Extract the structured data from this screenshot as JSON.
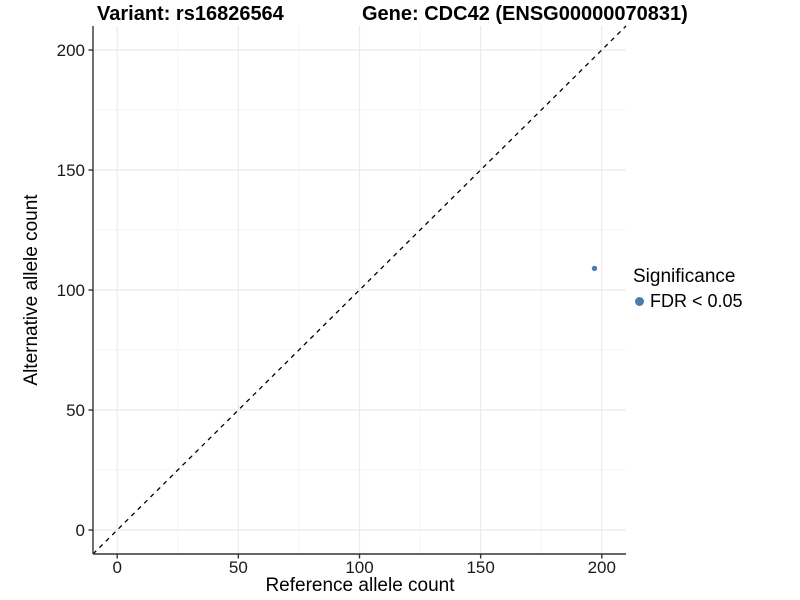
{
  "header": {
    "variant_title": "Variant: rs16826564",
    "gene_title": "Gene: CDC42 (ENSG00000070831)"
  },
  "chart_data": {
    "type": "scatter",
    "xlabel": "Reference allele count",
    "ylabel": "Alternative allele count",
    "xlim": [
      -10,
      210
    ],
    "ylim": [
      -10,
      210
    ],
    "x_ticks": [
      0,
      50,
      100,
      150,
      200
    ],
    "y_ticks": [
      0,
      50,
      100,
      150,
      200
    ],
    "x_minor_ticks": [
      25,
      75,
      125,
      175
    ],
    "y_minor_ticks": [
      25,
      75,
      125,
      175
    ],
    "grid": "major+minor",
    "identity_line": {
      "slope": 1,
      "intercept": 0,
      "linetype": "dashed",
      "color": "#000000"
    },
    "series": [
      {
        "name": "FDR < 0.05",
        "color": "#4c7caa",
        "points": [
          {
            "x": 197,
            "y": 109
          }
        ]
      }
    ],
    "legend": {
      "title": "Significance",
      "position": "right",
      "items": [
        {
          "label": "FDR < 0.05",
          "color": "#4c7caa"
        }
      ]
    }
  },
  "theme": {
    "background": "#ffffff",
    "grid_major_color": "#ebebeb",
    "grid_minor_color": "#f5f5f5",
    "axis_line_color": "#333333",
    "tick_label_color": "#1a1a1a",
    "text_color": "#000000",
    "point_color": "#4c7caa"
  }
}
